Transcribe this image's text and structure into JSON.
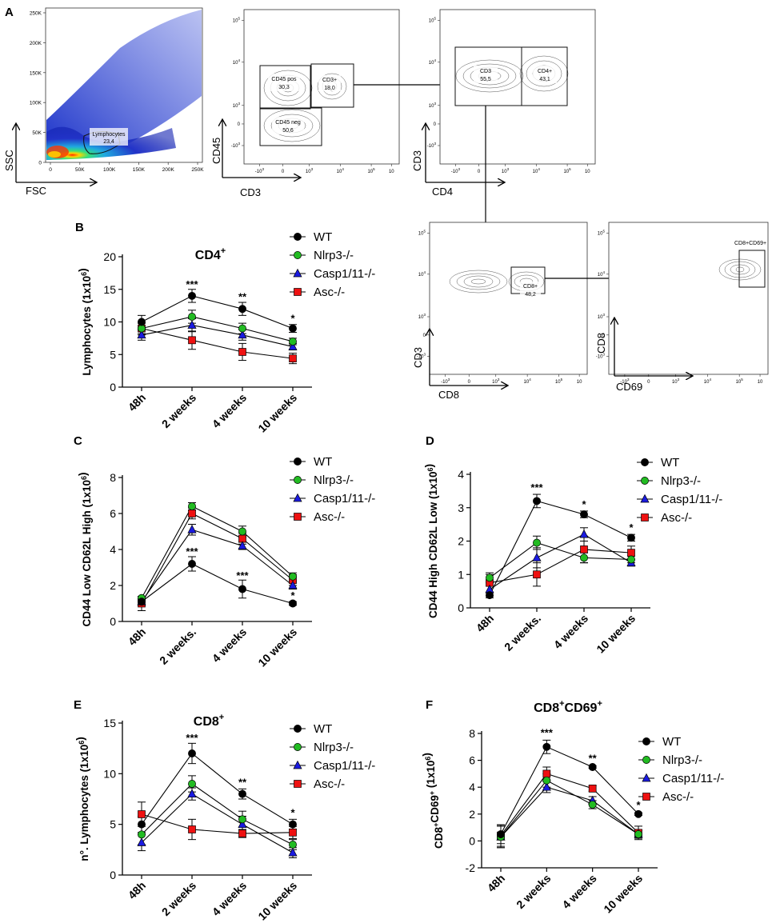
{
  "figure": {
    "panel_letters": [
      "A",
      "B",
      "C",
      "D",
      "E",
      "F"
    ]
  },
  "flow_panels": [
    {
      "id": "fsc-ssc",
      "xlabel": "FSC",
      "ylabel": "SSC",
      "xticks": [
        "0",
        "50K",
        "100K",
        "150K",
        "200K",
        "250K"
      ],
      "yticks": [
        "0",
        "50K",
        "100K",
        "150K",
        "200K",
        "250K"
      ],
      "gates": [
        {
          "name": "Lymphocytes",
          "value": "23,4"
        }
      ]
    },
    {
      "id": "cd3-cd45",
      "xlabel": "CD3",
      "ylabel": "CD45",
      "gates": [
        {
          "name": "CD45 pos",
          "value": "30,3"
        },
        {
          "name": "CD3+",
          "value": "18,0"
        },
        {
          "name": "CD45 neg",
          "value": "50,6"
        }
      ]
    },
    {
      "id": "cd4-cd3",
      "xlabel": "CD4",
      "ylabel": "CD3",
      "gates": [
        {
          "name": "CD3",
          "value": "55,5"
        },
        {
          "name": "CD4+",
          "value": "43,1"
        }
      ]
    },
    {
      "id": "cd8-cd3",
      "xlabel": "CD8",
      "ylabel": "CD3",
      "gates": [
        {
          "name": "CD8+",
          "value": "48,2"
        }
      ]
    },
    {
      "id": "cd69-cd8",
      "xlabel": "CD69",
      "ylabel": "CD8",
      "gates": [
        {
          "name": "CD8+CD69+",
          "value": ""
        }
      ]
    }
  ],
  "flow_axis_ticks": {
    "log_minus": "-10",
    "log_zero": "0",
    "log_labels": [
      "10",
      "10",
      "10",
      "10",
      "10"
    ],
    "log_exponents": [
      "3",
      "3",
      "4",
      "5",
      "5"
    ]
  },
  "legend": {
    "entries": [
      "WT",
      "Nlrp3-/-",
      "Casp1/11-/-",
      "Asc-/-"
    ]
  },
  "colors": {
    "WT": "#000000",
    "Nlrp3-/-": "#22bb22",
    "Casp1/11-/-": "#1a1ae0",
    "Asc-/-": "#ee1111"
  },
  "chart_data": [
    {
      "id": "B",
      "type": "line",
      "title": "CD4",
      "title_sup": "+",
      "ylabel": "Lymphocytes (1x10",
      "ylabel_sup": "6",
      "ylabel_end": ")",
      "ylim": [
        0,
        20
      ],
      "yticks": [
        0,
        5,
        10,
        15,
        20
      ],
      "categories": [
        "48h",
        "2 weeks",
        "4 weeks",
        "10 weeks"
      ],
      "series": [
        {
          "name": "WT",
          "values": [
            10,
            14,
            12,
            9
          ],
          "err": [
            1,
            1,
            1,
            0.6
          ]
        },
        {
          "name": "Nlrp3-/-",
          "values": [
            9,
            10.8,
            9,
            7
          ],
          "err": [
            1,
            1,
            0.8,
            0.5
          ]
        },
        {
          "name": "Casp1/11-/-",
          "values": [
            8,
            9.5,
            8,
            6.2
          ],
          "err": [
            0.8,
            1,
            0.8,
            0.5
          ]
        },
        {
          "name": "Asc-/-",
          "values": [
            9,
            7.2,
            5.4,
            4.4
          ],
          "err": [
            0.8,
            1.4,
            1.3,
            0.8
          ]
        }
      ],
      "annotations": [
        {
          "x": "2 weeks",
          "y": 15.2,
          "text": "***"
        },
        {
          "x": "4 weeks",
          "y": 13.3,
          "text": "**"
        },
        {
          "x": "10 weeks",
          "y": 10.0,
          "text": "*"
        }
      ]
    },
    {
      "id": "C",
      "type": "line",
      "title": "",
      "ylabel": "CD44 Low CD62L High (1x10",
      "ylabel_sup": "6",
      "ylabel_end": ")",
      "ylim": [
        0,
        8
      ],
      "yticks": [
        0,
        2,
        4,
        6,
        8
      ],
      "categories": [
        "48h",
        "2 weeks.",
        "4 weeks",
        "10 weeks"
      ],
      "series": [
        {
          "name": "WT",
          "values": [
            1.1,
            3.2,
            1.8,
            1.0
          ],
          "err": [
            0.2,
            0.4,
            0.5,
            0.1
          ]
        },
        {
          "name": "Nlrp3-/-",
          "values": [
            1.3,
            6.4,
            5.0,
            2.5
          ],
          "err": [
            0.1,
            0.2,
            0.3,
            0.2
          ]
        },
        {
          "name": "Casp1/11-/-",
          "values": [
            1.1,
            5.1,
            4.2,
            2.0
          ],
          "err": [
            0.15,
            0.3,
            0.2,
            0.2
          ]
        },
        {
          "name": "Asc-/-",
          "values": [
            1.0,
            6.0,
            4.6,
            2.3
          ],
          "err": [
            0.4,
            0.3,
            0.3,
            0.3
          ]
        }
      ],
      "annotations": [
        {
          "x": "2 weeks.",
          "y": 3.7,
          "text": "***"
        },
        {
          "x": "4 weeks",
          "y": 2.35,
          "text": "***"
        },
        {
          "x": "10 weeks",
          "y": 1.25,
          "text": "*"
        }
      ]
    },
    {
      "id": "D",
      "type": "line",
      "title": "",
      "ylabel": "CD44 High CD62L Low (1x10",
      "ylabel_sup": "6",
      "ylabel_end": ")",
      "ylim": [
        0,
        4
      ],
      "yticks": [
        0,
        1,
        2,
        3,
        4
      ],
      "categories": [
        "48h",
        "2 weeks.",
        "4 weeks",
        "10 weeks"
      ],
      "series": [
        {
          "name": "WT",
          "values": [
            0.38,
            3.2,
            2.8,
            2.1
          ],
          "err": [
            0.08,
            0.2,
            0.1,
            0.1
          ]
        },
        {
          "name": "Nlrp3-/-",
          "values": [
            0.9,
            1.95,
            1.5,
            1.45
          ],
          "err": [
            0.1,
            0.2,
            0.15,
            0.1
          ]
        },
        {
          "name": "Casp1/11-/-",
          "values": [
            0.55,
            1.5,
            2.2,
            1.35
          ],
          "err": [
            0.2,
            0.3,
            0.2,
            0.1
          ]
        },
        {
          "name": "Asc-/-",
          "values": [
            0.75,
            1.0,
            1.75,
            1.65
          ],
          "err": [
            0.3,
            0.35,
            0.4,
            0.2
          ]
        }
      ],
      "annotations": [
        {
          "x": "2 weeks.",
          "y": 3.5,
          "text": "***"
        },
        {
          "x": "4 weeks",
          "y": 3.0,
          "text": "*"
        },
        {
          "x": "10 weeks",
          "y": 2.3,
          "text": "*"
        }
      ]
    },
    {
      "id": "E",
      "type": "line",
      "title": "CD8",
      "title_sup": "+",
      "ylabel": "n°. Lymphocytes (1x10",
      "ylabel_sup": "6",
      "ylabel_end": ")",
      "ylim": [
        0,
        15
      ],
      "yticks": [
        0,
        5,
        10,
        15
      ],
      "categories": [
        "48h",
        "2 weeks",
        "4 weeks",
        "10 weeks"
      ],
      "series": [
        {
          "name": "WT",
          "values": [
            5,
            12,
            8,
            5
          ],
          "err": [
            0.8,
            1,
            0.5,
            0.5
          ]
        },
        {
          "name": "Nlrp3-/-",
          "values": [
            4,
            9,
            5.5,
            3
          ],
          "err": [
            1,
            0.8,
            0.8,
            0.5
          ]
        },
        {
          "name": "Casp1/11-/-",
          "values": [
            3.2,
            8,
            5,
            2.2
          ],
          "err": [
            0.8,
            0.6,
            0.8,
            0.5
          ]
        },
        {
          "name": "Asc-/-",
          "values": [
            6,
            4.5,
            4.1,
            4.2
          ],
          "err": [
            1.2,
            1,
            0.4,
            0.6
          ]
        }
      ],
      "annotations": [
        {
          "x": "2 weeks",
          "y": 13.2,
          "text": "***"
        },
        {
          "x": "4 weeks",
          "y": 8.8,
          "text": "**"
        },
        {
          "x": "10 weeks",
          "y": 5.8,
          "text": "*"
        }
      ]
    },
    {
      "id": "F",
      "type": "line",
      "title": "CD8",
      "title_sup": "+",
      "title_rest": "CD69",
      "title_rest_sup": "+",
      "ylabel": "CD8",
      "ylabel_sup": "+",
      "ylabel_mid": "CD69",
      "ylabel_mid_sup": "+",
      "ylabel_tail": " (1x10",
      "ylabel_tail_sup": "6",
      "ylabel_end": ")",
      "ylim": [
        -2,
        8
      ],
      "yticks": [
        -2,
        0,
        2,
        4,
        6,
        8
      ],
      "categories": [
        "48h",
        "2 weeks",
        "4 weeks",
        "10 weeks"
      ],
      "series": [
        {
          "name": "WT",
          "values": [
            0.5,
            7.0,
            5.5,
            2.0
          ],
          "err": [
            0.7,
            0.5,
            0.1,
            0.1
          ]
        },
        {
          "name": "Nlrp3-/-",
          "values": [
            0.3,
            4.5,
            2.7,
            0.5
          ],
          "err": [
            0.8,
            0.5,
            0.3,
            0.3
          ]
        },
        {
          "name": "Casp1/11-/-",
          "values": [
            0.3,
            4.0,
            3.0,
            0.5
          ],
          "err": [
            0.8,
            0.4,
            0.3,
            0.3
          ]
        },
        {
          "name": "Asc-/-",
          "values": [
            0.4,
            5.0,
            3.9,
            0.6
          ],
          "err": [
            0.8,
            0.5,
            0.2,
            0.5
          ]
        }
      ],
      "annotations": [
        {
          "x": "2 weeks",
          "y": 7.8,
          "text": "***"
        },
        {
          "x": "4 weeks",
          "y": 5.9,
          "text": "**"
        },
        {
          "x": "10 weeks",
          "y": 2.4,
          "text": "*"
        }
      ]
    }
  ]
}
